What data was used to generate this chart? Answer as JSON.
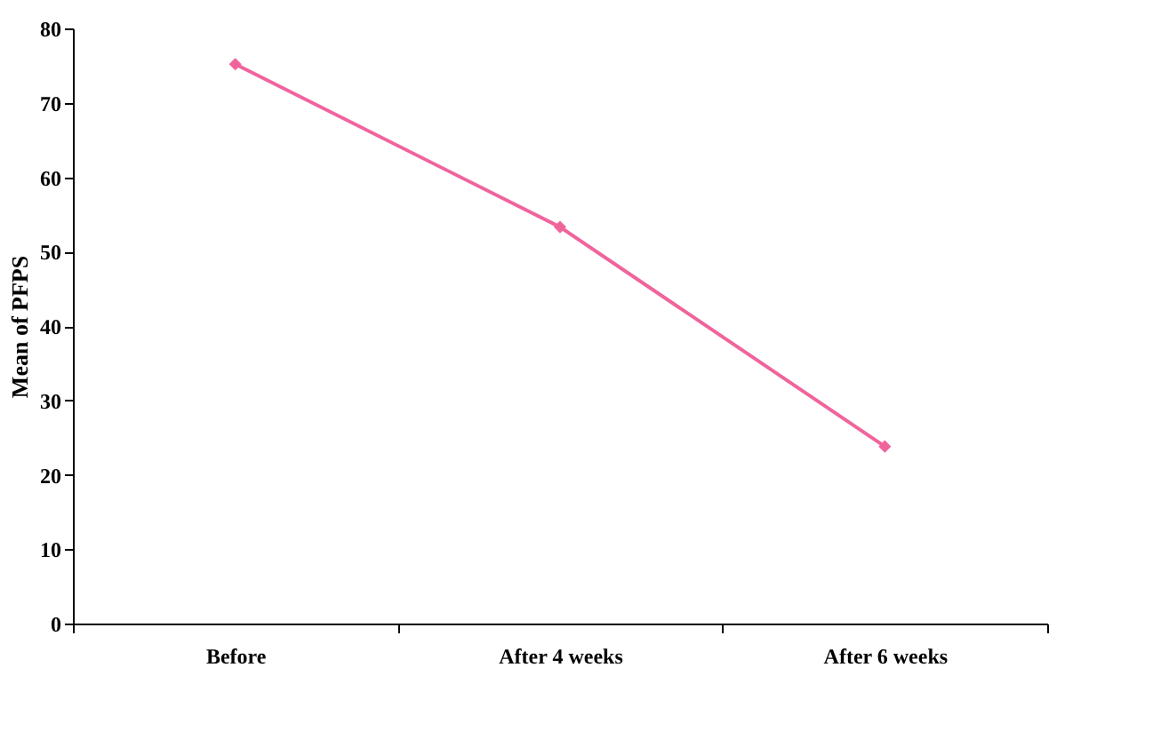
{
  "chart_data": {
    "type": "line",
    "ylabel": "Mean of PFPS",
    "categories": [
      "Before",
      "After 4 weeks",
      "After 6 weeks"
    ],
    "series": [
      {
        "color": "#f0649c",
        "values": [
          75.2,
          53.3,
          23.8
        ]
      }
    ],
    "ylim": [
      0,
      80
    ],
    "yticks": [
      0,
      10,
      20,
      30,
      40,
      50,
      60,
      70,
      80
    ],
    "grid": false,
    "marker": "diamond",
    "line_style": "solid"
  }
}
